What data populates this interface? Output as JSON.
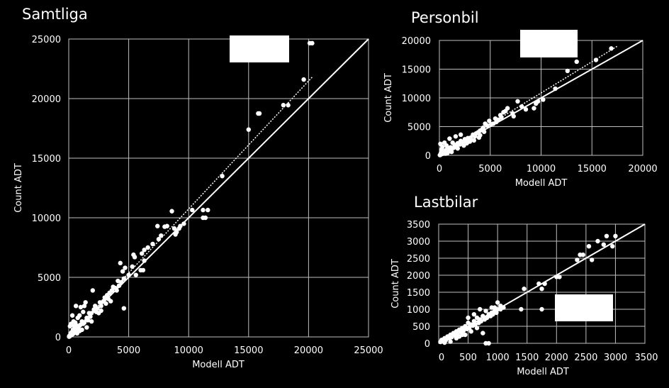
{
  "colors": {
    "background": "#000000",
    "foreground": "#ffffff",
    "grid": "#bfbfbf"
  },
  "chart_data": [
    {
      "type": "scatter",
      "title": "Samtliga",
      "xlabel": "Modell ADT",
      "ylabel": "Count ADT",
      "xlim": [
        0,
        25000
      ],
      "ylim": [
        0,
        25000
      ],
      "xticks": [
        0,
        5000,
        10000,
        15000,
        20000,
        25000
      ],
      "yticks": [
        0,
        5000,
        10000,
        15000,
        20000,
        25000
      ],
      "grid": true,
      "legend": "top-right (blank)",
      "identity_line": [
        [
          0,
          0
        ],
        [
          25000,
          25000
        ]
      ],
      "trendline": [
        [
          0,
          0
        ],
        [
          20300,
          21800
        ]
      ],
      "points": [
        [
          20300,
          24650
        ],
        [
          20100,
          24650
        ],
        [
          19600,
          21600
        ],
        [
          18300,
          19450
        ],
        [
          17900,
          19450
        ],
        [
          15900,
          18750
        ],
        [
          15800,
          18750
        ],
        [
          15000,
          17400
        ],
        [
          12800,
          13500
        ],
        [
          11600,
          10650
        ],
        [
          11200,
          10650
        ],
        [
          11400,
          10000
        ],
        [
          11200,
          10000
        ],
        [
          10300,
          10650
        ],
        [
          9600,
          9500
        ],
        [
          9300,
          9300
        ],
        [
          9200,
          9100
        ],
        [
          9000,
          8800
        ],
        [
          8800,
          9100
        ],
        [
          8900,
          8600
        ],
        [
          8600,
          10550
        ],
        [
          8200,
          9300
        ],
        [
          8000,
          9250
        ],
        [
          7700,
          8500
        ],
        [
          7500,
          8200
        ],
        [
          7400,
          9300
        ],
        [
          7000,
          7800
        ],
        [
          6600,
          7500
        ],
        [
          6300,
          7300
        ],
        [
          6100,
          7000
        ],
        [
          6300,
          6400
        ],
        [
          6000,
          5600
        ],
        [
          6200,
          5600
        ],
        [
          5500,
          6700
        ],
        [
          5400,
          6900
        ],
        [
          5300,
          5900
        ],
        [
          5000,
          5200
        ],
        [
          4700,
          5800
        ],
        [
          4500,
          5500
        ],
        [
          4300,
          6200
        ],
        [
          4600,
          4900
        ],
        [
          4400,
          4600
        ],
        [
          4200,
          4300
        ],
        [
          4100,
          4700
        ],
        [
          4000,
          3900
        ],
        [
          3900,
          4100
        ],
        [
          3700,
          4200
        ],
        [
          3600,
          3900
        ],
        [
          3400,
          3700
        ],
        [
          3300,
          3200
        ],
        [
          3200,
          3500
        ],
        [
          3000,
          3300
        ],
        [
          3100,
          2800
        ],
        [
          2900,
          3000
        ],
        [
          2700,
          2600
        ],
        [
          2600,
          2900
        ],
        [
          2400,
          2400
        ],
        [
          2200,
          2600
        ],
        [
          2300,
          2100
        ],
        [
          2100,
          2300
        ],
        [
          2000,
          3900
        ],
        [
          1900,
          2000
        ],
        [
          1800,
          1700
        ],
        [
          1700,
          2000
        ],
        [
          1600,
          1400
        ],
        [
          1500,
          1600
        ],
        [
          1400,
          2900
        ],
        [
          1300,
          2600
        ],
        [
          1200,
          2100
        ],
        [
          1300,
          1200
        ],
        [
          1200,
          1100
        ],
        [
          1100,
          1300
        ],
        [
          1000,
          2500
        ],
        [
          900,
          1800
        ],
        [
          950,
          1000
        ],
        [
          850,
          900
        ],
        [
          800,
          700
        ],
        [
          750,
          1600
        ],
        [
          700,
          600
        ],
        [
          650,
          800
        ],
        [
          600,
          500
        ],
        [
          550,
          1200
        ],
        [
          500,
          400
        ],
        [
          450,
          900
        ],
        [
          400,
          300
        ],
        [
          350,
          600
        ],
        [
          300,
          200
        ],
        [
          250,
          400
        ],
        [
          200,
          150
        ],
        [
          150,
          300
        ],
        [
          100,
          100
        ],
        [
          80,
          50
        ],
        [
          50,
          80
        ],
        [
          30,
          20
        ],
        [
          200,
          1100
        ],
        [
          400,
          1300
        ],
        [
          600,
          1000
        ],
        [
          900,
          500
        ],
        [
          1500,
          800
        ],
        [
          2500,
          2000
        ],
        [
          3500,
          3000
        ],
        [
          4600,
          2400
        ],
        [
          5600,
          5200
        ],
        [
          600,
          2600
        ],
        [
          300,
          1800
        ],
        [
          100,
          900
        ],
        [
          700,
          300
        ],
        [
          1100,
          600
        ],
        [
          1900,
          1300
        ],
        [
          2700,
          2200
        ]
      ]
    },
    {
      "type": "scatter",
      "title": "Personbil",
      "xlabel": "Modell ADT",
      "ylabel": "Count ADT",
      "xlim": [
        0,
        20000
      ],
      "ylim": [
        0,
        20000
      ],
      "xticks": [
        0,
        5000,
        10000,
        15000,
        20000
      ],
      "yticks": [
        0,
        5000,
        10000,
        15000,
        20000
      ],
      "grid": true,
      "legend": "top-right (blank)",
      "identity_line": [
        [
          0,
          0
        ],
        [
          20000,
          20000
        ]
      ],
      "trendline": [
        [
          0,
          0
        ],
        [
          17500,
          19000
        ]
      ],
      "points": [
        [
          16900,
          18600
        ],
        [
          15400,
          16600
        ],
        [
          13500,
          16300
        ],
        [
          12600,
          14700
        ],
        [
          11400,
          11600
        ],
        [
          10200,
          9700
        ],
        [
          9700,
          9400
        ],
        [
          9500,
          9000
        ],
        [
          9300,
          8200
        ],
        [
          8500,
          8000
        ],
        [
          8100,
          8500
        ],
        [
          7700,
          9400
        ],
        [
          7200,
          7300
        ],
        [
          6700,
          8200
        ],
        [
          6500,
          7700
        ],
        [
          6300,
          7500
        ],
        [
          6000,
          7000
        ],
        [
          5800,
          6200
        ],
        [
          5500,
          6400
        ],
        [
          5300,
          5500
        ],
        [
          5100,
          5400
        ],
        [
          4900,
          6000
        ],
        [
          4700,
          5200
        ],
        [
          4500,
          5500
        ],
        [
          4300,
          4800
        ],
        [
          4200,
          4500
        ],
        [
          4000,
          4300
        ],
        [
          3800,
          4000
        ],
        [
          3600,
          3800
        ],
        [
          3500,
          3300
        ],
        [
          3300,
          3600
        ],
        [
          3100,
          3100
        ],
        [
          3000,
          2800
        ],
        [
          2800,
          3000
        ],
        [
          2600,
          2500
        ],
        [
          2500,
          2800
        ],
        [
          2300,
          2200
        ],
        [
          2100,
          2500
        ],
        [
          2000,
          1900
        ],
        [
          1800,
          2100
        ],
        [
          1700,
          1600
        ],
        [
          1500,
          1800
        ],
        [
          1400,
          1300
        ],
        [
          1300,
          2200
        ],
        [
          1200,
          1100
        ],
        [
          1100,
          1400
        ],
        [
          1000,
          900
        ],
        [
          900,
          1200
        ],
        [
          800,
          700
        ],
        [
          700,
          1000
        ],
        [
          600,
          500
        ],
        [
          500,
          800
        ],
        [
          400,
          300
        ],
        [
          300,
          600
        ],
        [
          200,
          200
        ],
        [
          150,
          400
        ],
        [
          100,
          100
        ],
        [
          50,
          50
        ],
        [
          200,
          1000
        ],
        [
          300,
          1500
        ],
        [
          100,
          2000
        ],
        [
          500,
          2200
        ],
        [
          700,
          1700
        ],
        [
          1000,
          2900
        ],
        [
          1600,
          3300
        ],
        [
          2100,
          3600
        ],
        [
          2700,
          2100
        ],
        [
          3400,
          2600
        ],
        [
          3900,
          3100
        ],
        [
          4400,
          4100
        ],
        [
          5600,
          5800
        ],
        [
          6100,
          6600
        ],
        [
          7300,
          6800
        ],
        [
          600,
          300
        ],
        [
          800,
          400
        ],
        [
          1200,
          600
        ],
        [
          1800,
          1200
        ],
        [
          2400,
          1700
        ],
        [
          3000,
          2400
        ],
        [
          4000,
          3500
        ]
      ]
    },
    {
      "type": "scatter",
      "title": "Lastbilar",
      "xlabel": "Modell ADT",
      "ylabel": "Count ADT",
      "xlim": [
        0,
        3500
      ],
      "ylim": [
        0,
        3500
      ],
      "xticks": [
        0,
        500,
        1000,
        1500,
        2000,
        2500,
        3000,
        3500
      ],
      "yticks": [
        0,
        500,
        1000,
        1500,
        2000,
        2500,
        3000,
        3500
      ],
      "grid": true,
      "legend": "bottom-right (blank)",
      "identity_line": [
        [
          0,
          0
        ],
        [
          3500,
          3500
        ]
      ],
      "points": [
        [
          3000,
          3150
        ],
        [
          2950,
          2850
        ],
        [
          2850,
          3150
        ],
        [
          2800,
          2900
        ],
        [
          2700,
          3000
        ],
        [
          2600,
          2450
        ],
        [
          2550,
          2850
        ],
        [
          2450,
          2600
        ],
        [
          2400,
          2600
        ],
        [
          2350,
          2450
        ],
        [
          2050,
          1950
        ],
        [
          2000,
          1950
        ],
        [
          1800,
          1750
        ],
        [
          1750,
          1600
        ],
        [
          1700,
          1750
        ],
        [
          1750,
          1000
        ],
        [
          1450,
          1600
        ],
        [
          1400,
          1000
        ],
        [
          1100,
          1050
        ],
        [
          1050,
          1000
        ],
        [
          1000,
          1000
        ],
        [
          950,
          1050
        ],
        [
          900,
          900
        ],
        [
          850,
          850
        ],
        [
          800,
          950
        ],
        [
          750,
          800
        ],
        [
          700,
          700
        ],
        [
          650,
          750
        ],
        [
          600,
          650
        ],
        [
          550,
          550
        ],
        [
          500,
          600
        ],
        [
          450,
          500
        ],
        [
          400,
          450
        ],
        [
          350,
          400
        ],
        [
          300,
          350
        ],
        [
          250,
          300
        ],
        [
          200,
          250
        ],
        [
          150,
          200
        ],
        [
          100,
          150
        ],
        [
          50,
          100
        ],
        [
          30,
          40
        ],
        [
          80,
          60
        ],
        [
          120,
          90
        ],
        [
          180,
          150
        ],
        [
          220,
          180
        ],
        [
          280,
          230
        ],
        [
          320,
          270
        ],
        [
          380,
          330
        ],
        [
          420,
          370
        ],
        [
          480,
          420
        ],
        [
          520,
          450
        ],
        [
          580,
          520
        ],
        [
          620,
          550
        ],
        [
          680,
          600
        ],
        [
          720,
          650
        ],
        [
          780,
          700
        ],
        [
          820,
          750
        ],
        [
          880,
          800
        ],
        [
          920,
          850
        ],
        [
          980,
          900
        ],
        [
          1000,
          1200
        ],
        [
          900,
          1050
        ],
        [
          700,
          1000
        ],
        [
          600,
          850
        ],
        [
          500,
          750
        ],
        [
          800,
          0
        ],
        [
          850,
          0
        ],
        [
          750,
          300
        ],
        [
          400,
          250
        ],
        [
          300,
          150
        ],
        [
          1050,
          1100
        ],
        [
          950,
          950
        ],
        [
          650,
          450
        ],
        [
          550,
          350
        ],
        [
          200,
          50
        ],
        [
          100,
          20
        ],
        [
          450,
          250
        ],
        [
          350,
          200
        ]
      ]
    }
  ]
}
